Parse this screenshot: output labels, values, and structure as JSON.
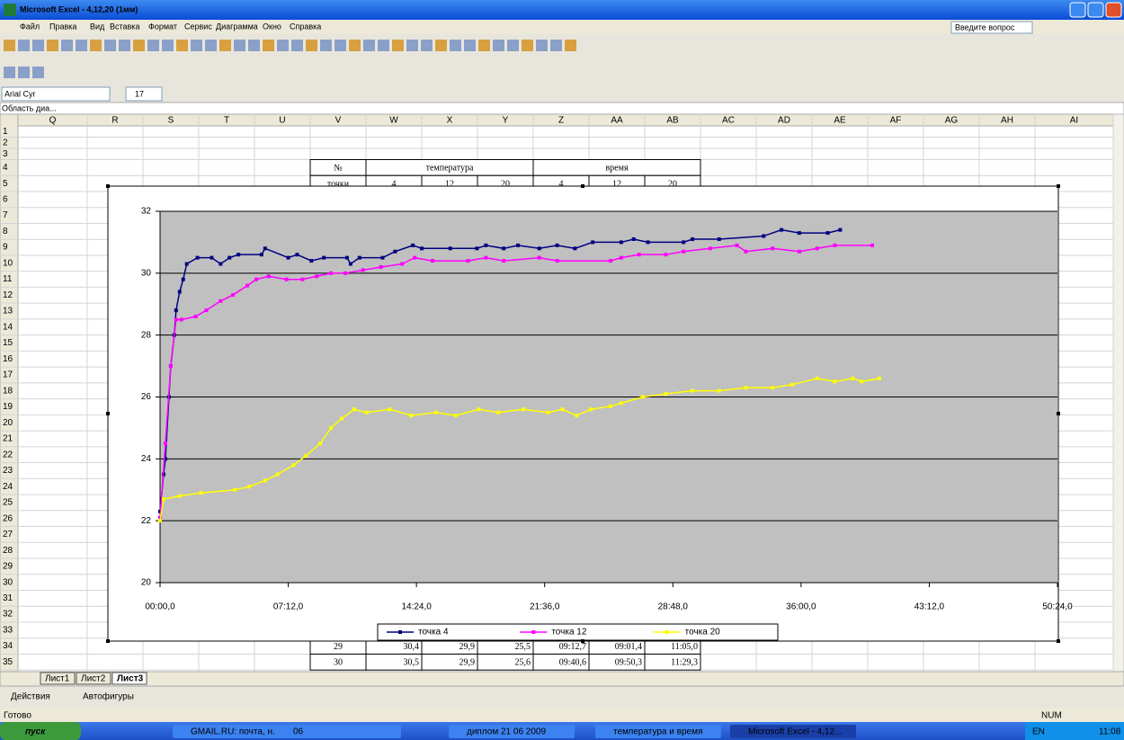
{
  "window": {
    "title": "Microsoft Excel - 4,12,20 (1мм)",
    "menu": [
      "Файл",
      "Правка",
      "Вид",
      "Вставка",
      "Формат",
      "Сервис",
      "Диаграмма",
      "Окно",
      "Справка"
    ],
    "help_box": "Введите вопрос",
    "font": "Arial Cyr",
    "font_size": "17",
    "name_box": "Область диа...",
    "columns": [
      "Q",
      "R",
      "S",
      "T",
      "U",
      "V",
      "W",
      "X",
      "Y",
      "Z",
      "AA",
      "AB",
      "AC",
      "AD",
      "AE",
      "AF",
      "AG",
      "AH",
      "AI"
    ],
    "rows": [
      1,
      2,
      3,
      4,
      5,
      6,
      7,
      8,
      9,
      10,
      11,
      12,
      13,
      14,
      15,
      16,
      17,
      18,
      19,
      20,
      21,
      22,
      23,
      24,
      25,
      26,
      27,
      28,
      29,
      30,
      31,
      32,
      33,
      34,
      35
    ],
    "sheets": [
      "Лист1",
      "Лист2",
      "Лист3"
    ],
    "draw_toolbar": [
      "Действия",
      "Автофигуры"
    ],
    "status": "Готово",
    "num": "NUM",
    "taskbar": {
      "start": "пуск",
      "items": [
        "GMAIL.RU: почта, н...",
        "06",
        "диплом 21 06 2009",
        "температура и время",
        "Microsoft Excel - 4,12..."
      ],
      "lang": "EN",
      "clock": "11:08"
    }
  },
  "table": {
    "header": [
      "№",
      "температура",
      "время"
    ],
    "subheader": [
      "точки",
      "4",
      "12",
      "20",
      "4",
      "12",
      "20"
    ],
    "rows": [
      [
        "29",
        "30,4",
        "29,9",
        "25,5",
        "09:12,7",
        "09:01,4",
        "11:05,0"
      ],
      [
        "30",
        "30,5",
        "29,9",
        "25,6",
        "09:40,6",
        "09:50,3",
        "11:29,3"
      ]
    ]
  },
  "chart_data": {
    "type": "line",
    "xlim": [
      0,
      50.4
    ],
    "xticks": [
      {
        "value": 0,
        "label": "00:00,0"
      },
      {
        "value": 7.2,
        "label": "07:12,0"
      },
      {
        "value": 14.4,
        "label": "14:24,0"
      },
      {
        "value": 21.6,
        "label": "21:36,0"
      },
      {
        "value": 28.8,
        "label": "28:48,0"
      },
      {
        "value": 36,
        "label": "36:00,0"
      },
      {
        "value": 43.2,
        "label": "43:12,0"
      },
      {
        "value": 50.4,
        "label": "50:24,0"
      }
    ],
    "ylim": [
      20,
      32
    ],
    "yticks": [
      20,
      22,
      24,
      26,
      28,
      30,
      32
    ],
    "grid": true,
    "legend": "bottom",
    "series": [
      {
        "name": "точка 4",
        "color": "#000080",
        "x": [
          0,
          0.2,
          0.3,
          0.5,
          0.6,
          0.8,
          0.9,
          1.1,
          1.3,
          1.5,
          2.1,
          2.9,
          3.4,
          3.9,
          4.4,
          5.7,
          5.9,
          7.2,
          7.7,
          8.5,
          9.2,
          10.5,
          10.7,
          11.2,
          12.5,
          13.2,
          14.2,
          14.7,
          16.3,
          17.8,
          18.3,
          19.3,
          20.1,
          21.3,
          22.3,
          23.3,
          24.3,
          25.9,
          26.6,
          27.4,
          29.4,
          29.9,
          31.4,
          33.9,
          34.9,
          35.9,
          37.5,
          38.2
        ],
        "values": [
          22.3,
          23.5,
          24,
          26,
          27,
          28,
          28.8,
          29.4,
          29.8,
          30.3,
          30.5,
          30.5,
          30.3,
          30.5,
          30.6,
          30.6,
          30.8,
          30.5,
          30.6,
          30.4,
          30.5,
          30.5,
          30.3,
          30.5,
          30.5,
          30.7,
          30.9,
          30.8,
          30.8,
          30.8,
          30.9,
          30.8,
          30.9,
          30.8,
          30.9,
          30.8,
          31,
          31,
          31.1,
          31,
          31,
          31.1,
          31.1,
          31.2,
          31.4,
          31.3,
          31.3,
          31.4
        ]
      },
      {
        "name": "точка 12",
        "color": "#ff00ff",
        "x": [
          0,
          0.3,
          0.6,
          0.9,
          1.2,
          2,
          2.6,
          3.4,
          4.1,
          4.9,
          5.4,
          6.1,
          7.1,
          8,
          8.8,
          9.6,
          10.4,
          11.4,
          12.4,
          13.6,
          14.3,
          15.3,
          17.3,
          18.3,
          19.3,
          21.3,
          22.3,
          25.3,
          25.9,
          26.9,
          28.4,
          29.4,
          30.9,
          32.4,
          32.9,
          34.4,
          35.9,
          36.9,
          37.9,
          40
        ],
        "values": [
          22.1,
          24.5,
          27,
          28.5,
          28.5,
          28.6,
          28.8,
          29.1,
          29.3,
          29.6,
          29.8,
          29.9,
          29.8,
          29.8,
          29.9,
          30,
          30,
          30.1,
          30.2,
          30.3,
          30.5,
          30.4,
          30.4,
          30.5,
          30.4,
          30.5,
          30.4,
          30.4,
          30.5,
          30.6,
          30.6,
          30.7,
          30.8,
          30.9,
          30.7,
          30.8,
          30.7,
          30.8,
          30.9,
          30.9
        ]
      },
      {
        "name": "точка 20",
        "color": "#ffff00",
        "x": [
          0,
          0.2,
          1.1,
          2.3,
          4.2,
          5,
          5.9,
          6.6,
          7.5,
          8.2,
          9,
          9.6,
          10.2,
          10.9,
          11.6,
          12.9,
          14.1,
          15.5,
          16.6,
          17.9,
          19,
          20.4,
          21.8,
          22.6,
          23.4,
          24.2,
          25.3,
          25.9,
          27.1,
          28.4,
          29.9,
          31.4,
          32.9,
          34.4,
          35.5,
          36.9,
          37.9,
          38.9,
          39.4,
          40.4
        ],
        "values": [
          22,
          22.7,
          22.8,
          22.9,
          23,
          23.1,
          23.3,
          23.5,
          23.8,
          24.1,
          24.5,
          25,
          25.3,
          25.6,
          25.5,
          25.6,
          25.4,
          25.5,
          25.4,
          25.6,
          25.5,
          25.6,
          25.5,
          25.6,
          25.4,
          25.6,
          25.7,
          25.8,
          26,
          26.1,
          26.2,
          26.2,
          26.3,
          26.3,
          26.4,
          26.6,
          26.5,
          26.6,
          26.5,
          26.6
        ]
      }
    ]
  }
}
